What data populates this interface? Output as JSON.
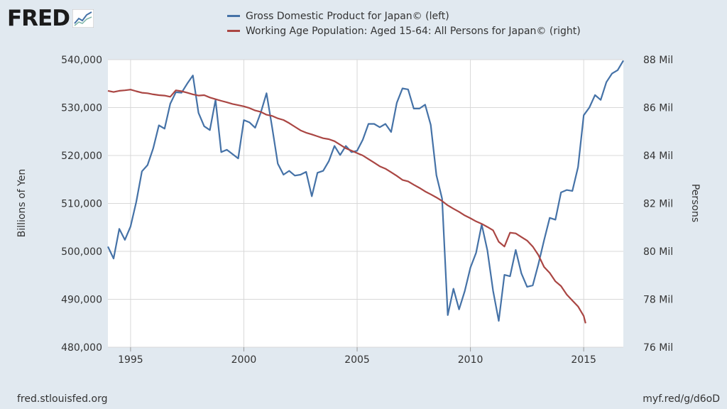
{
  "brand": {
    "logo_text": "FRED"
  },
  "footer": {
    "source": "fred.stlouisfed.org",
    "short_url": "myf.red/g/d6oD"
  },
  "colors": {
    "gdp": "#4572a7",
    "pop": "#aa4643",
    "plot_bg": "#ffffff",
    "page_bg": "#e1e9f0",
    "grid": "#d8d8d8"
  },
  "chart_data": {
    "type": "line",
    "title": "",
    "xlabel": "",
    "ylabel": "Billions of Yen",
    "ylabel_right": "Persons",
    "grid": true,
    "legend_position": "top-center",
    "xlim": [
      1994.0,
      2016.75
    ],
    "ylim": [
      480000,
      540000
    ],
    "ylim_right": [
      76,
      88
    ],
    "x_ticks": [
      1995,
      2000,
      2005,
      2010,
      2015
    ],
    "y_ticks": [
      480000,
      490000,
      500000,
      510000,
      520000,
      530000,
      540000
    ],
    "y_tick_labels": [
      "480,000",
      "490,000",
      "500,000",
      "510,000",
      "520,000",
      "530,000",
      "540,000"
    ],
    "y_ticks_right": [
      76,
      78,
      80,
      82,
      84,
      86,
      88
    ],
    "y_tick_labels_right": [
      "76 Mil",
      "78 Mil",
      "80 Mil",
      "82 Mil",
      "84 Mil",
      "86 Mil",
      "88 Mil"
    ],
    "series": [
      {
        "name": "Gross Domestic Product for Japan© (left)",
        "axis": "left",
        "color": "#4572a7",
        "x": [
          1994.0,
          1994.25,
          1994.5,
          1994.75,
          1995.0,
          1995.25,
          1995.5,
          1995.75,
          1996.0,
          1996.25,
          1996.5,
          1996.75,
          1997.0,
          1997.25,
          1997.5,
          1997.75,
          1998.0,
          1998.25,
          1998.5,
          1998.75,
          1999.0,
          1999.25,
          1999.5,
          1999.75,
          2000.0,
          2000.25,
          2000.5,
          2000.75,
          2001.0,
          2001.25,
          2001.5,
          2001.75,
          2002.0,
          2002.25,
          2002.5,
          2002.75,
          2003.0,
          2003.25,
          2003.5,
          2003.75,
          2004.0,
          2004.25,
          2004.5,
          2004.75,
          2005.0,
          2005.25,
          2005.5,
          2005.75,
          2006.0,
          2006.25,
          2006.5,
          2006.75,
          2007.0,
          2007.25,
          2007.5,
          2007.75,
          2008.0,
          2008.25,
          2008.5,
          2008.75,
          2009.0,
          2009.25,
          2009.5,
          2009.75,
          2010.0,
          2010.25,
          2010.5,
          2010.75,
          2011.0,
          2011.25,
          2011.5,
          2011.75,
          2012.0,
          2012.25,
          2012.5,
          2012.75,
          2013.0,
          2013.25,
          2013.5,
          2013.75,
          2014.0,
          2014.25,
          2014.5,
          2014.75,
          2015.0,
          2015.25,
          2015.5,
          2015.75,
          2016.0,
          2016.25,
          2016.5,
          2016.75
        ],
        "values": [
          501000,
          498500,
          504700,
          502400,
          505200,
          510300,
          516700,
          518000,
          521500,
          526300,
          525600,
          530800,
          533200,
          533100,
          535000,
          536700,
          528900,
          526100,
          525300,
          531600,
          520700,
          521200,
          520300,
          519400,
          527400,
          526900,
          525800,
          529000,
          533000,
          525800,
          518300,
          516000,
          516800,
          515800,
          516000,
          516600,
          511500,
          516400,
          516800,
          518800,
          522000,
          520100,
          522000,
          520700,
          521000,
          523300,
          526600,
          526600,
          525900,
          526600,
          524900,
          531000,
          534000,
          533800,
          529800,
          529800,
          530600,
          526400,
          515900,
          511000,
          486700,
          492200,
          487900,
          491700,
          496600,
          499700,
          505600,
          500200,
          491800,
          485500,
          495100,
          494800,
          500300,
          495400,
          492600,
          492900,
          497300,
          502300,
          507000,
          506600,
          512300,
          512800,
          512600,
          517600,
          528400,
          530000,
          532600,
          531600,
          535300,
          537100,
          537800,
          539800
        ]
      },
      {
        "name": "Working Age Population: Aged 15-64: All Persons for Japan© (right)",
        "axis": "right",
        "color": "#aa4643",
        "x": [
          1994.0,
          1994.25,
          1994.5,
          1994.75,
          1995.0,
          1995.25,
          1995.5,
          1995.75,
          1996.0,
          1996.25,
          1996.5,
          1996.75,
          1997.0,
          1997.25,
          1997.5,
          1997.75,
          1998.0,
          1998.25,
          1998.5,
          1998.75,
          1999.0,
          1999.25,
          1999.5,
          1999.75,
          2000.0,
          2000.25,
          2000.5,
          2000.75,
          2001.0,
          2001.25,
          2001.5,
          2001.75,
          2002.0,
          2002.25,
          2002.5,
          2002.75,
          2003.0,
          2003.25,
          2003.5,
          2003.75,
          2004.0,
          2004.25,
          2004.5,
          2004.75,
          2005.0,
          2005.25,
          2005.5,
          2005.75,
          2006.0,
          2006.25,
          2006.5,
          2006.75,
          2007.0,
          2007.25,
          2007.5,
          2007.75,
          2008.0,
          2008.25,
          2008.5,
          2008.75,
          2009.0,
          2009.25,
          2009.5,
          2009.75,
          2010.0,
          2010.25,
          2010.5,
          2010.75,
          2011.0,
          2011.25,
          2011.5,
          2011.75,
          2012.0,
          2012.25,
          2012.5,
          2012.75,
          2013.0,
          2013.25,
          2013.5,
          2013.75,
          2014.0,
          2014.25,
          2014.5,
          2014.75,
          2015.0,
          2015.083
        ],
        "values": [
          86.7,
          86.65,
          86.7,
          86.72,
          86.75,
          86.68,
          86.62,
          86.6,
          86.55,
          86.52,
          86.5,
          86.45,
          86.72,
          86.68,
          86.62,
          86.55,
          86.5,
          86.52,
          86.42,
          86.35,
          86.28,
          86.22,
          86.15,
          86.1,
          86.05,
          85.98,
          85.88,
          85.82,
          85.7,
          85.65,
          85.55,
          85.48,
          85.35,
          85.2,
          85.05,
          84.95,
          84.88,
          84.8,
          84.72,
          84.68,
          84.6,
          84.45,
          84.3,
          84.2,
          84.1,
          84.0,
          83.85,
          83.7,
          83.55,
          83.45,
          83.3,
          83.15,
          82.98,
          82.92,
          82.78,
          82.65,
          82.5,
          82.38,
          82.25,
          82.1,
          81.92,
          81.78,
          81.65,
          81.5,
          81.38,
          81.25,
          81.15,
          81.02,
          80.88,
          80.4,
          80.2,
          80.78,
          80.75,
          80.6,
          80.45,
          80.2,
          79.85,
          79.35,
          79.1,
          78.75,
          78.55,
          78.2,
          77.95,
          77.7,
          77.3,
          77.0
        ]
      }
    ]
  }
}
